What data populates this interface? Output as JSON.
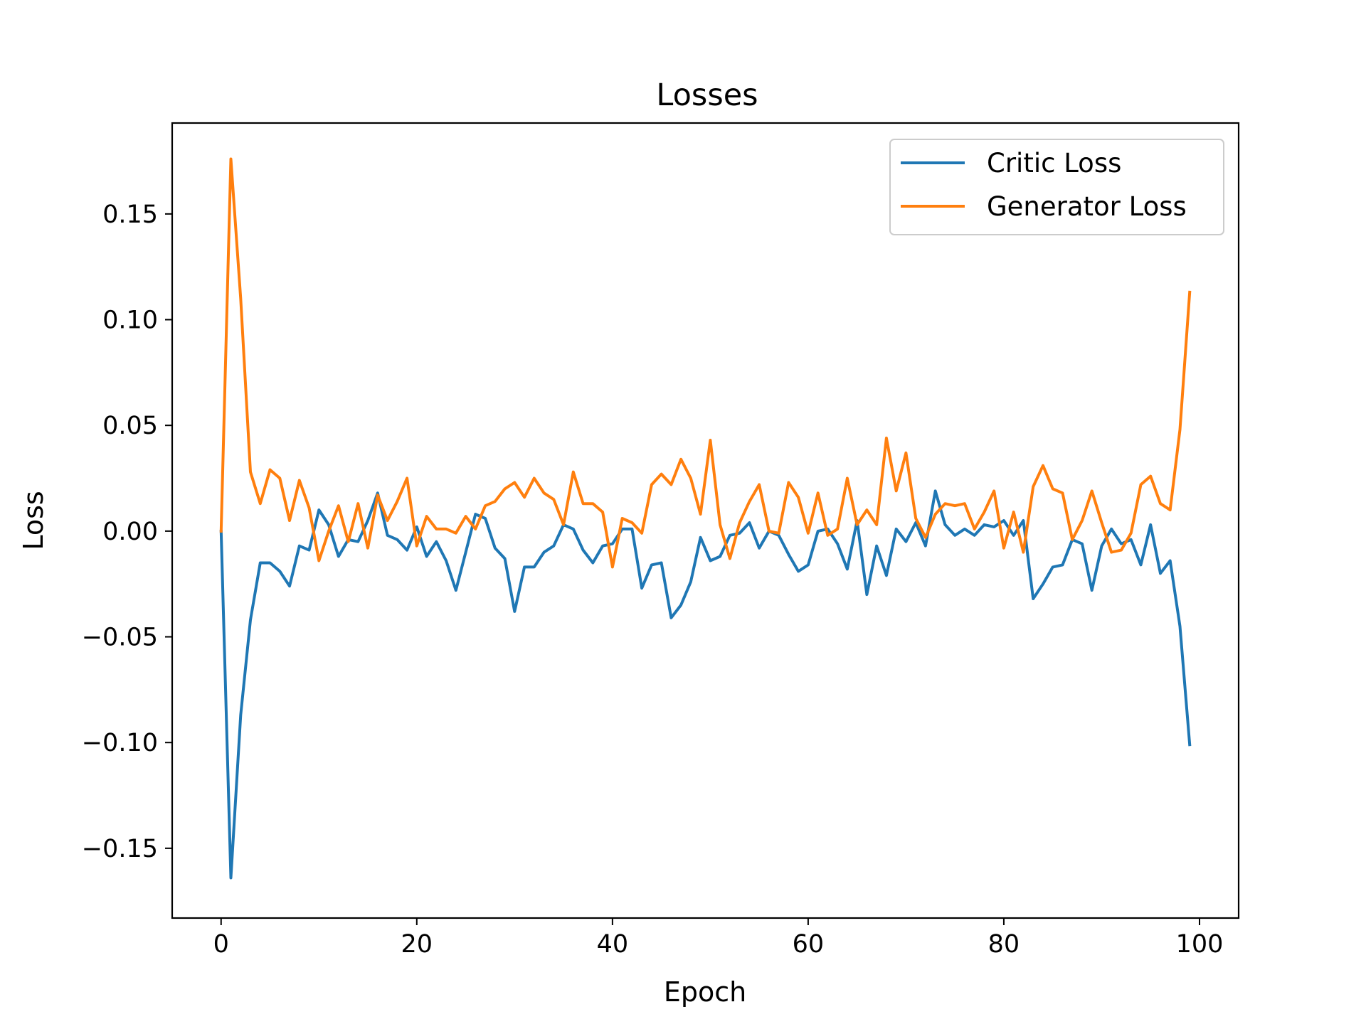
{
  "chart_data": {
    "type": "line",
    "title": "Losses",
    "xlabel": "Epoch",
    "ylabel": "Loss",
    "xlim": [
      -5,
      104
    ],
    "ylim": [
      -0.183,
      0.193
    ],
    "xticks": [
      0,
      20,
      40,
      60,
      80,
      100
    ],
    "xtick_labels": [
      "0",
      "20",
      "40",
      "60",
      "80",
      "100"
    ],
    "yticks": [
      -0.15,
      -0.1,
      -0.05,
      0.0,
      0.05,
      0.1,
      0.15
    ],
    "ytick_labels": [
      "−0.15",
      "−0.10",
      "−0.05",
      "0.00",
      "0.05",
      "0.10",
      "0.15"
    ],
    "grid": false,
    "legend_position": "upper right",
    "x": [
      0,
      1,
      2,
      3,
      4,
      5,
      6,
      7,
      8,
      9,
      10,
      11,
      12,
      13,
      14,
      15,
      16,
      17,
      18,
      19,
      20,
      21,
      22,
      23,
      24,
      25,
      26,
      27,
      28,
      29,
      30,
      31,
      32,
      33,
      34,
      35,
      36,
      37,
      38,
      39,
      40,
      41,
      42,
      43,
      44,
      45,
      46,
      47,
      48,
      49,
      50,
      51,
      52,
      53,
      54,
      55,
      56,
      57,
      58,
      59,
      60,
      61,
      62,
      63,
      64,
      65,
      66,
      67,
      68,
      69,
      70,
      71,
      72,
      73,
      74,
      75,
      76,
      77,
      78,
      79,
      80,
      81,
      82,
      83,
      84,
      85,
      86,
      87,
      88,
      89,
      90,
      91,
      92,
      93,
      94,
      95,
      96,
      97,
      98,
      99
    ],
    "series": [
      {
        "name": "Critic Loss",
        "color": "#1f77b4",
        "values": [
          0.0,
          -0.164,
          -0.087,
          -0.042,
          -0.015,
          -0.015,
          -0.019,
          -0.026,
          -0.007,
          -0.009,
          0.01,
          0.003,
          -0.012,
          -0.004,
          -0.005,
          0.005,
          0.018,
          -0.002,
          -0.004,
          -0.009,
          0.002,
          -0.012,
          -0.005,
          -0.014,
          -0.028,
          -0.01,
          0.008,
          0.006,
          -0.008,
          -0.013,
          -0.038,
          -0.017,
          -0.017,
          -0.01,
          -0.007,
          0.003,
          0.001,
          -0.009,
          -0.015,
          -0.007,
          -0.006,
          0.001,
          0.001,
          -0.027,
          -0.016,
          -0.015,
          -0.041,
          -0.035,
          -0.024,
          -0.003,
          -0.014,
          -0.012,
          -0.002,
          -0.001,
          0.004,
          -0.008,
          0.0,
          -0.002,
          -0.011,
          -0.019,
          -0.016,
          0.0,
          0.001,
          -0.006,
          -0.018,
          0.005,
          -0.03,
          -0.007,
          -0.021,
          0.001,
          -0.005,
          0.004,
          -0.007,
          0.019,
          0.003,
          -0.002,
          0.001,
          -0.002,
          0.003,
          0.002,
          0.005,
          -0.002,
          0.005,
          -0.032,
          -0.025,
          -0.017,
          -0.016,
          -0.004,
          -0.006,
          -0.028,
          -0.007,
          0.001,
          -0.006,
          -0.004,
          -0.016,
          0.003,
          -0.02,
          -0.014,
          -0.045,
          -0.101
        ]
      },
      {
        "name": "Generator Loss",
        "color": "#ff7f0e",
        "values": [
          0.0,
          0.176,
          0.11,
          0.028,
          0.013,
          0.029,
          0.025,
          0.005,
          0.024,
          0.011,
          -0.014,
          0.0,
          0.012,
          -0.005,
          0.013,
          -0.008,
          0.017,
          0.005,
          0.014,
          0.025,
          -0.007,
          0.007,
          0.001,
          0.001,
          -0.001,
          0.007,
          0.001,
          0.012,
          0.014,
          0.02,
          0.023,
          0.016,
          0.025,
          0.018,
          0.015,
          0.003,
          0.028,
          0.013,
          0.013,
          0.009,
          -0.017,
          0.006,
          0.004,
          -0.001,
          0.022,
          0.027,
          0.022,
          0.034,
          0.025,
          0.008,
          0.043,
          0.003,
          -0.013,
          0.004,
          0.014,
          0.022,
          0.0,
          -0.001,
          0.023,
          0.016,
          -0.001,
          0.018,
          -0.002,
          0.001,
          0.025,
          0.003,
          0.01,
          0.003,
          0.044,
          0.019,
          0.037,
          0.006,
          -0.003,
          0.008,
          0.013,
          0.012,
          0.013,
          0.001,
          0.009,
          0.019,
          -0.008,
          0.009,
          -0.01,
          0.021,
          0.031,
          0.02,
          0.018,
          -0.004,
          0.005,
          0.019,
          0.004,
          -0.01,
          -0.009,
          -0.001,
          0.022,
          0.026,
          0.013,
          0.01,
          0.048,
          0.113
        ]
      }
    ]
  }
}
